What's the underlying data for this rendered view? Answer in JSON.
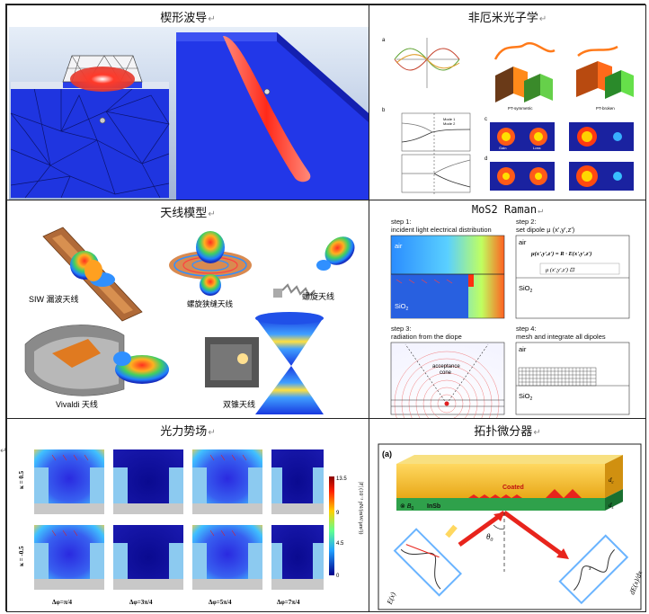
{
  "panels": {
    "wedge": {
      "title": "楔形波导"
    },
    "nonherm": {
      "title": "非厄米光子学",
      "sublabels": [
        "a",
        "b",
        "c",
        "d"
      ],
      "annotations": [
        "PT-symmetric",
        "PT-broken",
        "Mode 1",
        "Mode 2",
        "Gain",
        "Loss"
      ]
    },
    "antenna": {
      "title": "天线模型",
      "labels": [
        "SIW 漏波天线",
        "螺旋狭缝天线",
        "螺旋天线",
        "Vivaldi 天线",
        "双锥天线"
      ]
    },
    "mos2": {
      "title": "MoS2 Raman",
      "step1": [
        "step 1:",
        "incident light electrical distribution"
      ],
      "step2": [
        "step 2:",
        "set dipole μ (x',y',z')"
      ],
      "step3": [
        "step 3:",
        "radiation from the diope"
      ],
      "step4": [
        "step 4:",
        "mesh and integrate all dipoles"
      ],
      "air": "air",
      "sio2": "SiO",
      "sio2_sub": "2",
      "acceptance": [
        "acceptance",
        "cone"
      ]
    },
    "optforce": {
      "title": "光力势场",
      "row_labels": [
        "κ = 0.5",
        "κ = -0.5"
      ],
      "col_labels": [
        "Δφ=π/4",
        "Δφ=3π/4",
        "Δφ=5π/4",
        "Δφ=7π/4"
      ],
      "colorbar_label": "|F| (10⁻³ pN/(mW/μm²))",
      "colorbar_ticks": [
        "13.5",
        "9",
        "4.5",
        "0"
      ]
    },
    "topo": {
      "title": "拓扑微分器",
      "tag": "(a)",
      "coated": "Coated",
      "insb": "InSb",
      "b0": "B",
      "b0_sub": "0",
      "theta": "θ",
      "theta_sub": "0",
      "dc": "d",
      "dc_sub": "c",
      "ds": "d",
      "ds_sub": "s",
      "ex": "E(x)",
      "dex": "dE(x)/dx",
      "xaxis": "x"
    }
  },
  "margin_mark": "↵",
  "colors": {
    "border": "#222222",
    "deep_blue": "#1a2cd0",
    "gold": "#f2c230",
    "green": "#2fa14b",
    "red": "#e8241c"
  }
}
